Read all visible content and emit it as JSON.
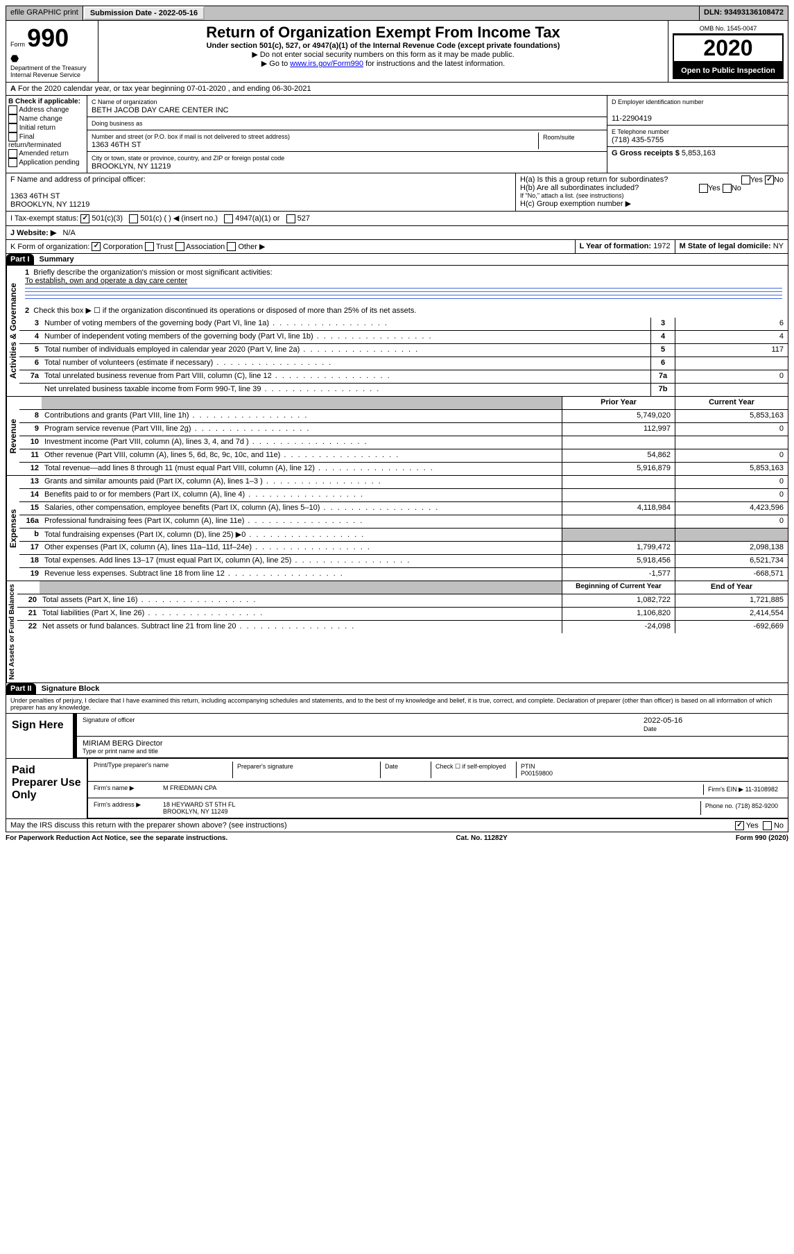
{
  "header": {
    "efile": "efile GRAPHIC print",
    "submission_label": "Submission Date - 2022-05-16",
    "dln": "DLN: 93493136108472"
  },
  "form": {
    "form_label": "Form",
    "form_number": "990",
    "dept": "Department of the Treasury",
    "irs": "Internal Revenue Service",
    "title": "Return of Organization Exempt From Income Tax",
    "subtitle": "Under section 501(c), 527, or 4947(a)(1) of the Internal Revenue Code (except private foundations)",
    "note1": "▶ Do not enter social security numbers on this form as it may be made public.",
    "note2_prefix": "▶ Go to ",
    "note2_link": "www.irs.gov/Form990",
    "note2_suffix": " for instructions and the latest information.",
    "omb": "OMB No. 1545-0047",
    "year": "2020",
    "inspect": "Open to Public Inspection"
  },
  "lineA": "For the 2020 calendar year, or tax year beginning 07-01-2020    , and ending 06-30-2021",
  "B": {
    "label": "B Check if applicable:",
    "items": [
      "Address change",
      "Name change",
      "Initial return",
      "Final return/terminated",
      "Amended return",
      "Application pending"
    ]
  },
  "C": {
    "name_label": "C Name of organization",
    "name": "BETH JACOB DAY CARE CENTER INC",
    "dba_label": "Doing business as",
    "addr_label": "Number and street (or P.O. box if mail is not delivered to street address)",
    "room_label": "Room/suite",
    "addr": "1363 46TH ST",
    "city_label": "City or town, state or province, country, and ZIP or foreign postal code",
    "city": "BROOKLYN, NY  11219"
  },
  "D": {
    "ein_label": "D Employer identification number",
    "ein": "11-2290419",
    "phone_label": "E Telephone number",
    "phone": "(718) 435-5755",
    "gross_label": "G Gross receipts $",
    "gross": "5,853,163"
  },
  "F": {
    "label": "F  Name and address of principal officer:",
    "addr1": "1363 46TH ST",
    "addr2": "BROOKLYN, NY  11219"
  },
  "H": {
    "a": "H(a)  Is this a group return for subordinates?",
    "b": "H(b)  Are all subordinates included?",
    "b_note": "If \"No,\" attach a list. (see instructions)",
    "c": "H(c)  Group exemption number ▶",
    "yes": "Yes",
    "no": "No"
  },
  "I": {
    "label": "I    Tax-exempt status:",
    "opts": [
      "501(c)(3)",
      "501(c) (  ) ◀ (insert no.)",
      "4947(a)(1) or",
      "527"
    ]
  },
  "J": {
    "label": "J   Website: ▶",
    "val": "N/A"
  },
  "K": {
    "label": "K Form of organization:",
    "opts": [
      "Corporation",
      "Trust",
      "Association",
      "Other ▶"
    ]
  },
  "L": {
    "label": "L Year of formation:",
    "val": "1972"
  },
  "M": {
    "label": "M State of legal domicile:",
    "val": "NY"
  },
  "partI": {
    "header": "Part I",
    "title": "Summary",
    "q1": "Briefly describe the organization's mission or most significant activities:",
    "q1_ans": "To establish, own and operate a day care center",
    "q2": "Check this box ▶ ☐  if the organization discontinued its operations or disposed of more than 25% of its net assets.",
    "rows_gov": [
      {
        "n": "3",
        "d": "Number of voting members of the governing body (Part VI, line 1a)",
        "b": "3",
        "v": "6"
      },
      {
        "n": "4",
        "d": "Number of independent voting members of the governing body (Part VI, line 1b)",
        "b": "4",
        "v": "4"
      },
      {
        "n": "5",
        "d": "Total number of individuals employed in calendar year 2020 (Part V, line 2a)",
        "b": "5",
        "v": "117"
      },
      {
        "n": "6",
        "d": "Total number of volunteers (estimate if necessary)",
        "b": "6",
        "v": ""
      },
      {
        "n": "7a",
        "d": "Total unrelated business revenue from Part VIII, column (C), line 12",
        "b": "7a",
        "v": "0"
      },
      {
        "n": "",
        "d": "Net unrelated business taxable income from Form 990-T, line 39",
        "b": "7b",
        "v": ""
      }
    ],
    "prior_year": "Prior Year",
    "current_year": "Current Year",
    "rows_rev": [
      {
        "n": "8",
        "d": "Contributions and grants (Part VIII, line 1h)",
        "p": "5,749,020",
        "c": "5,853,163"
      },
      {
        "n": "9",
        "d": "Program service revenue (Part VIII, line 2g)",
        "p": "112,997",
        "c": "0"
      },
      {
        "n": "10",
        "d": "Investment income (Part VIII, column (A), lines 3, 4, and 7d )",
        "p": "",
        "c": ""
      },
      {
        "n": "11",
        "d": "Other revenue (Part VIII, column (A), lines 5, 6d, 8c, 9c, 10c, and 11e)",
        "p": "54,862",
        "c": "0"
      },
      {
        "n": "12",
        "d": "Total revenue—add lines 8 through 11 (must equal Part VIII, column (A), line 12)",
        "p": "5,916,879",
        "c": "5,853,163"
      }
    ],
    "rows_exp": [
      {
        "n": "13",
        "d": "Grants and similar amounts paid (Part IX, column (A), lines 1–3 )",
        "p": "",
        "c": "0"
      },
      {
        "n": "14",
        "d": "Benefits paid to or for members (Part IX, column (A), line 4)",
        "p": "",
        "c": "0"
      },
      {
        "n": "15",
        "d": "Salaries, other compensation, employee benefits (Part IX, column (A), lines 5–10)",
        "p": "4,118,984",
        "c": "4,423,596"
      },
      {
        "n": "16a",
        "d": "Professional fundraising fees (Part IX, column (A), line 11e)",
        "p": "",
        "c": "0"
      },
      {
        "n": "b",
        "d": "Total fundraising expenses (Part IX, column (D), line 25) ▶0",
        "p": "gray",
        "c": "gray"
      },
      {
        "n": "17",
        "d": "Other expenses (Part IX, column (A), lines 11a–11d, 11f–24e)",
        "p": "1,799,472",
        "c": "2,098,138"
      },
      {
        "n": "18",
        "d": "Total expenses. Add lines 13–17 (must equal Part IX, column (A), line 25)",
        "p": "5,918,456",
        "c": "6,521,734"
      },
      {
        "n": "19",
        "d": "Revenue less expenses. Subtract line 18 from line 12",
        "p": "-1,577",
        "c": "-668,571"
      }
    ],
    "beg_year": "Beginning of Current Year",
    "end_year": "End of Year",
    "rows_net": [
      {
        "n": "20",
        "d": "Total assets (Part X, line 16)",
        "p": "1,082,722",
        "c": "1,721,885"
      },
      {
        "n": "21",
        "d": "Total liabilities (Part X, line 26)",
        "p": "1,106,820",
        "c": "2,414,554"
      },
      {
        "n": "22",
        "d": "Net assets or fund balances. Subtract line 21 from line 20",
        "p": "-24,098",
        "c": "-692,669"
      }
    ]
  },
  "sections": {
    "gov": "Activities & Governance",
    "rev": "Revenue",
    "exp": "Expenses",
    "net": "Net Assets or Fund Balances"
  },
  "partII": {
    "header": "Part II",
    "title": "Signature Block",
    "decl": "Under penalties of perjury, I declare that I have examined this return, including accompanying schedules and statements, and to the best of my knowledge and belief, it is true, correct, and complete. Declaration of preparer (other than officer) is based on all information of which preparer has any knowledge."
  },
  "sign": {
    "here": "Sign Here",
    "sig_officer": "Signature of officer",
    "date": "Date",
    "date_val": "2022-05-16",
    "name": "MIRIAM BERG  Director",
    "name_label": "Type or print name and title"
  },
  "paid": {
    "label": "Paid Preparer Use Only",
    "print_name": "Print/Type preparer's name",
    "prep_sig": "Preparer's signature",
    "date": "Date",
    "check": "Check ☐ if self-employed",
    "ptin_label": "PTIN",
    "ptin": "P00159800",
    "firm_name_label": "Firm's name      ▶",
    "firm_name": "M FRIEDMAN CPA",
    "firm_ein_label": "Firm's EIN ▶",
    "firm_ein": "11-3108982",
    "firm_addr_label": "Firm's address ▶",
    "firm_addr1": "18 HEYWARD ST 5TH FL",
    "firm_addr2": "BROOKLYN, NY  11249",
    "phone_label": "Phone no.",
    "phone": "(718) 852-9200"
  },
  "discuss": "May the IRS discuss this return with the preparer shown above? (see instructions)",
  "footer": {
    "left": "For Paperwork Reduction Act Notice, see the separate instructions.",
    "center": "Cat. No. 11282Y",
    "right": "Form 990 (2020)"
  }
}
